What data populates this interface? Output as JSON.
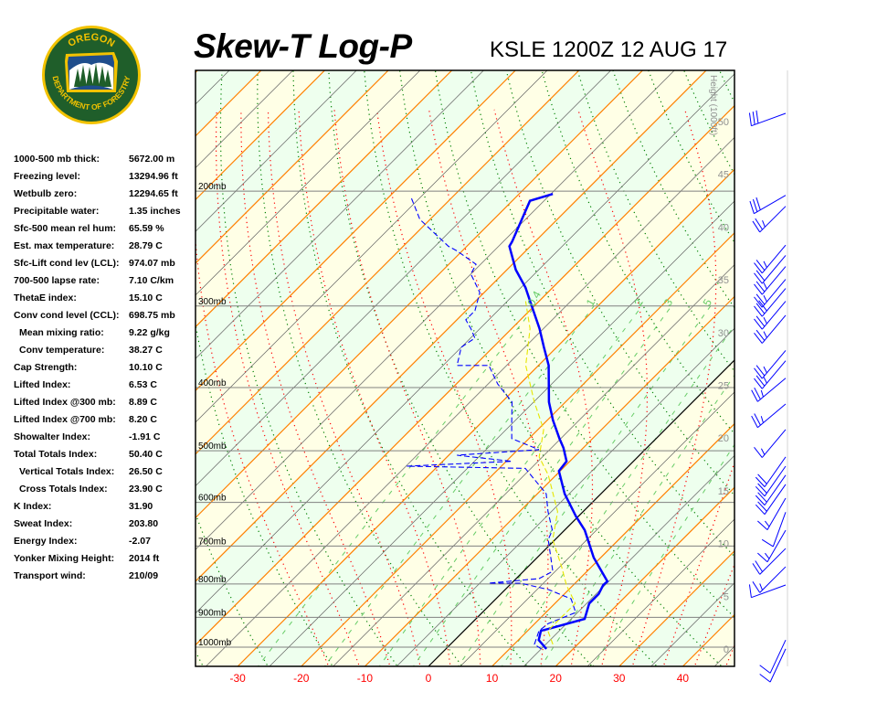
{
  "header": {
    "title": "Skew-T Log-P",
    "station_label": "KSLE 1200Z 12 AUG 17"
  },
  "logo": {
    "top_text": "OREGON",
    "bottom_text": "DEPARTMENT OF FORESTRY",
    "colors": {
      "ring": "#f2c200",
      "band": "#1f5e2a",
      "sky": "#1f4e8c"
    }
  },
  "stats": [
    {
      "label": "1000-500 mb thick:",
      "value": "5672.00 m"
    },
    {
      "label": "Freezing level:",
      "value": "13294.96 ft"
    },
    {
      "label": "Wetbulb zero:",
      "value": "12294.65 ft"
    },
    {
      "label": "Precipitable water:",
      "value": "1.35 inches"
    },
    {
      "label": "Sfc-500 mean rel hum:",
      "value": "65.59 %"
    },
    {
      "label": "Est. max temperature:",
      "value": "28.79 C"
    },
    {
      "label": "Sfc-Lift cond lev (LCL):",
      "value": "974.07 mb"
    },
    {
      "label": "700-500 lapse rate:",
      "value": "7.10 C/km"
    },
    {
      "label": "ThetaE index:",
      "value": "15.10 C"
    },
    {
      "label": "Conv cond level (CCL):",
      "value": "698.75 mb"
    },
    {
      "label": "Mean mixing ratio:",
      "value": "9.22 g/kg",
      "indent": true
    },
    {
      "label": "Conv temperature:",
      "value": "38.27 C",
      "indent": true
    },
    {
      "label": "Cap Strength:",
      "value": "10.10 C"
    },
    {
      "label": "Lifted Index:",
      "value": "6.53 C"
    },
    {
      "label": "Lifted Index @300 mb:",
      "value": "8.89 C"
    },
    {
      "label": "Lifted Index @700 mb:",
      "value": "8.20 C"
    },
    {
      "label": "Showalter Index:",
      "value": "-1.91 C"
    },
    {
      "label": "Total Totals Index:",
      "value": "50.40 C"
    },
    {
      "label": "Vertical Totals Index:",
      "value": "26.50 C",
      "indent": true
    },
    {
      "label": "Cross Totals Index:",
      "value": "23.90 C",
      "indent": true
    },
    {
      "label": "K Index:",
      "value": "31.90"
    },
    {
      "label": "Sweat Index:",
      "value": "203.80"
    },
    {
      "label": "Energy Index:",
      "value": "-2.07"
    },
    {
      "label": "Yonker Mixing Height:",
      "value": "2014 ft"
    },
    {
      "label": "Transport wind:",
      "value": "210/09"
    }
  ],
  "chart_data": {
    "type": "line",
    "subtype": "skew-t log-p",
    "x_unit": "C",
    "y_unit": "mb",
    "y_scale": "log",
    "ylim": [
      1070,
      131
    ],
    "x_ticks": [
      -30,
      -20,
      -10,
      0,
      10,
      20,
      30,
      40
    ],
    "pressure_levels": [
      {
        "p": 200,
        "label": "200mb"
      },
      {
        "p": 300,
        "label": "300mb"
      },
      {
        "p": 400,
        "label": "400mb"
      },
      {
        "p": 500,
        "label": "500mb"
      },
      {
        "p": 600,
        "label": "600mb"
      },
      {
        "p": 700,
        "label": "700mb"
      },
      {
        "p": 800,
        "label": "800mb"
      },
      {
        "p": 900,
        "label": "900mb"
      },
      {
        "p": 1000,
        "label": "1000mb"
      }
    ],
    "height_axis": {
      "label": "Height (1000ft)",
      "ticks": [
        0,
        5,
        10,
        15,
        20,
        25,
        30,
        35,
        40,
        45,
        50
      ]
    },
    "mixing_ratio_labels": [
      "0.4",
      "1",
      "2",
      "3",
      "5"
    ],
    "mixing_ratio_lines": [
      0.4,
      1,
      2,
      3,
      5,
      8,
      12,
      20
    ],
    "colors": {
      "temperature": "#0000ff",
      "dewpoint": "#0000ff",
      "wetbulb": "#e6e600",
      "isotherm": "#ff8000",
      "zero_isotherm": "#000000",
      "dry_adiabat": "#008000",
      "moist_adiabat": "#ff0000",
      "mixing_ratio": "#66cc66",
      "x_tick_labels": "#ff0000",
      "band_a": "#ffffe6",
      "band_b": "#eeffee"
    },
    "series": [
      {
        "key": "temperature",
        "style": "solid-thick",
        "points": [
          [
            1006,
            15.8
          ],
          [
            975,
            13.2
          ],
          [
            944,
            12.1
          ],
          [
            938,
            12.9
          ],
          [
            905,
            17.1
          ],
          [
            857,
            15.4
          ],
          [
            829,
            15.4
          ],
          [
            803,
            14.7
          ],
          [
            793,
            14.8
          ],
          [
            729,
            8.9
          ],
          [
            662,
            3.2
          ],
          [
            630,
            -0.4
          ],
          [
            582,
            -5.7
          ],
          [
            537,
            -10.2
          ],
          [
            519,
            -10.5
          ],
          [
            495,
            -13.1
          ],
          [
            479,
            -15.2
          ],
          [
            449,
            -19.1
          ],
          [
            421,
            -22.6
          ],
          [
            370,
            -28.4
          ],
          [
            347,
            -32.0
          ],
          [
            325,
            -35.6
          ],
          [
            295,
            -41.4
          ],
          [
            281,
            -44.3
          ],
          [
            264,
            -48.6
          ],
          [
            243,
            -53.3
          ],
          [
            239,
            -53.6
          ],
          [
            207,
            -57.2
          ],
          [
            202,
            -54.7
          ]
        ]
      },
      {
        "key": "dewpoint",
        "style": "dashed",
        "points": [
          [
            1006,
            15.0
          ],
          [
            990,
            13.2
          ],
          [
            944,
            11.8
          ],
          [
            920,
            12.1
          ],
          [
            885,
            14.7
          ],
          [
            843,
            11.8
          ],
          [
            816,
            6.8
          ],
          [
            798,
            1.4
          ],
          [
            798,
            -3.6
          ],
          [
            785,
            3.6
          ],
          [
            765,
            4.6
          ],
          [
            684,
            -1.1
          ],
          [
            662,
            -1.9
          ],
          [
            620,
            -5.5
          ],
          [
            582,
            -8.6
          ],
          [
            532,
            -15.9
          ],
          [
            528,
            -34.9
          ],
          [
            519,
            -19.1
          ],
          [
            508,
            -28.7
          ],
          [
            498,
            -16.7
          ],
          [
            479,
            -22.7
          ],
          [
            456,
            -24.9
          ],
          [
            421,
            -28.4
          ],
          [
            395,
            -33.5
          ],
          [
            370,
            -37.8
          ],
          [
            370,
            -42.8
          ],
          [
            347,
            -45.0
          ],
          [
            336,
            -44.3
          ],
          [
            325,
            -46.4
          ],
          [
            315,
            -48.6
          ],
          [
            305,
            -48.6
          ],
          [
            286,
            -50.7
          ],
          [
            268,
            -55.0
          ],
          [
            259,
            -55.7
          ],
          [
            247,
            -60.8
          ],
          [
            243,
            -62.9
          ],
          [
            221,
            -71.6
          ],
          [
            204,
            -76.6
          ]
        ]
      },
      {
        "key": "wetbulb",
        "style": "dashed",
        "points": [
          [
            990,
            16.1
          ],
          [
            944,
            13.2
          ],
          [
            914,
            13.2
          ],
          [
            857,
            13.2
          ],
          [
            803,
            8.9
          ],
          [
            753,
            5.3
          ],
          [
            684,
            -0.4
          ],
          [
            620,
            -4.0
          ],
          [
            545,
            -11.2
          ],
          [
            511,
            -15.5
          ],
          [
            464,
            -19.1
          ],
          [
            421,
            -24.9
          ],
          [
            370,
            -32.0
          ],
          [
            325,
            -37.1
          ],
          [
            295,
            -42.1
          ]
        ]
      }
    ],
    "winds": [
      {
        "p": 152,
        "dir": 250,
        "spd": 30
      },
      {
        "p": 203,
        "dir": 240,
        "spd": 30
      },
      {
        "p": 211,
        "dir": 225,
        "spd": 25
      },
      {
        "p": 242,
        "dir": 220,
        "spd": 25
      },
      {
        "p": 251,
        "dir": 220,
        "spd": 20
      },
      {
        "p": 261,
        "dir": 220,
        "spd": 25
      },
      {
        "p": 273,
        "dir": 220,
        "spd": 25
      },
      {
        "p": 282,
        "dir": 220,
        "spd": 30
      },
      {
        "p": 295,
        "dir": 220,
        "spd": 25
      },
      {
        "p": 310,
        "dir": 220,
        "spd": 25
      },
      {
        "p": 351,
        "dir": 220,
        "spd": 25
      },
      {
        "p": 364,
        "dir": 220,
        "spd": 25
      },
      {
        "p": 387,
        "dir": 230,
        "spd": 25
      },
      {
        "p": 424,
        "dir": 230,
        "spd": 25
      },
      {
        "p": 464,
        "dir": 220,
        "spd": 15
      },
      {
        "p": 511,
        "dir": 215,
        "spd": 20
      },
      {
        "p": 528,
        "dir": 215,
        "spd": 20
      },
      {
        "p": 545,
        "dir": 215,
        "spd": 20
      },
      {
        "p": 563,
        "dir": 215,
        "spd": 20
      },
      {
        "p": 591,
        "dir": 210,
        "spd": 15
      },
      {
        "p": 621,
        "dir": 200,
        "spd": 10
      },
      {
        "p": 662,
        "dir": 210,
        "spd": 15
      },
      {
        "p": 706,
        "dir": 225,
        "spd": 20
      },
      {
        "p": 753,
        "dir": 225,
        "spd": 15
      },
      {
        "p": 803,
        "dir": 250,
        "spd": 10
      },
      {
        "p": 975,
        "dir": 205,
        "spd": 10
      },
      {
        "p": 1006,
        "dir": 205,
        "spd": 10
      }
    ]
  }
}
